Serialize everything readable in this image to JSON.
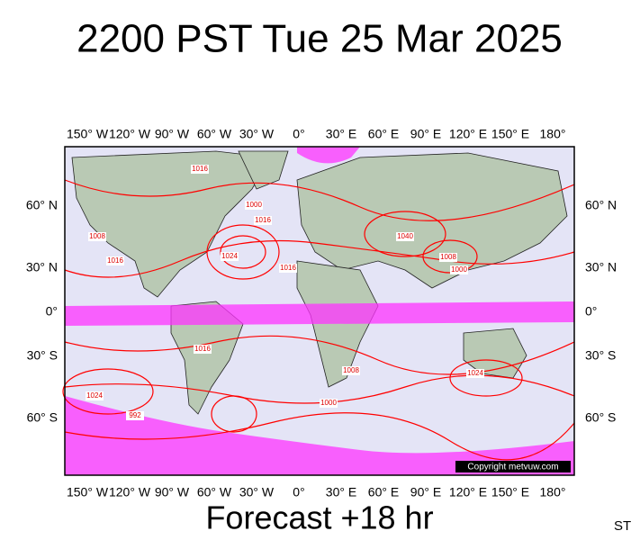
{
  "title": "2200 PST Tue 25 Mar 2025",
  "longitude_labels": [
    "150° W",
    "120° W",
    "90° W",
    "60° W",
    "30° W",
    "0°",
    "30° E",
    "60° E",
    "90° E",
    "120° E",
    "150° E",
    "180°"
  ],
  "latitude_labels": [
    "60° N",
    "30° N",
    "0°",
    "30° S",
    "60° S"
  ],
  "isobar_labels": [
    "1016",
    "1000",
    "1016",
    "1024",
    "1016",
    "1008",
    "1040",
    "1008",
    "1000",
    "1016",
    "1024",
    "1008",
    "1024",
    "992",
    "1000",
    "1016"
  ],
  "copyright": "Copyright metvuw.com",
  "footer": "Forecast +18 hr",
  "corner_text": "ST"
}
